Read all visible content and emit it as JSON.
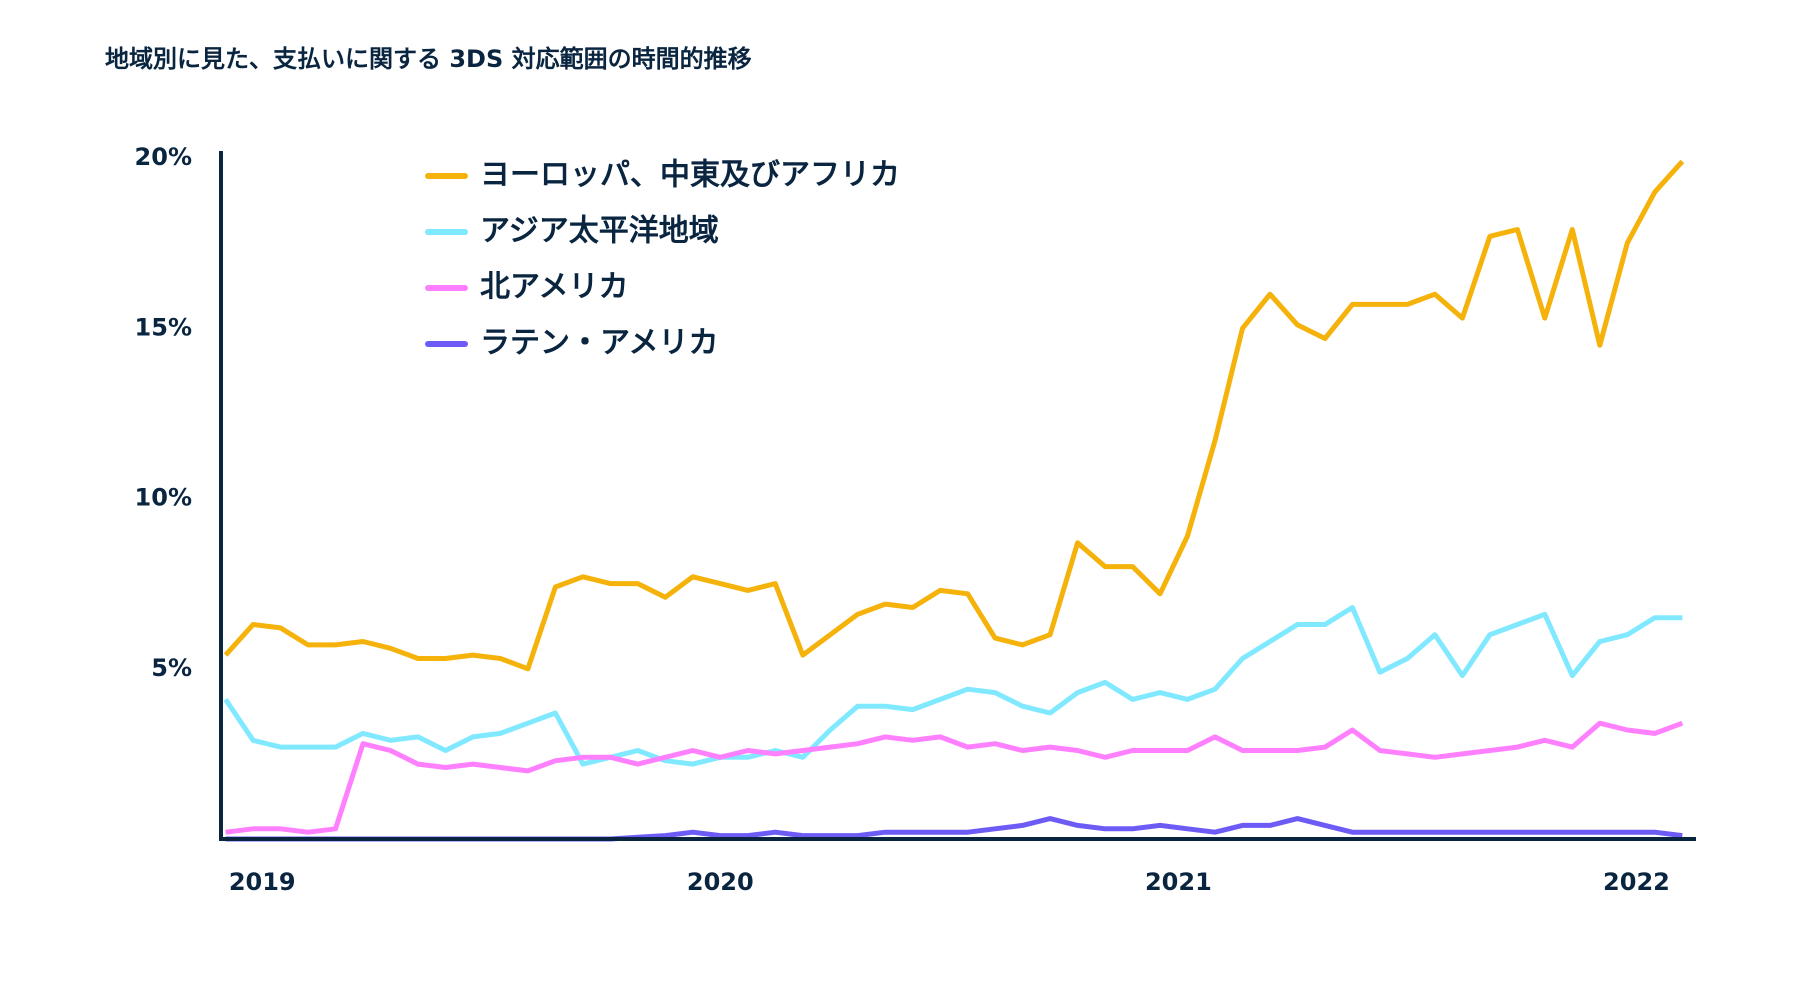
{
  "chart_data": {
    "type": "line",
    "title": "地域別に見た、支払いに関する 3DS 対応範囲の時間的推移",
    "x": [
      2018.92,
      2018.98,
      2019.04,
      2019.1,
      2019.16,
      2019.22,
      2019.28,
      2019.34,
      2019.4,
      2019.46,
      2019.52,
      2019.58,
      2019.64,
      2019.7,
      2019.76,
      2019.82,
      2019.88,
      2019.94,
      2020,
      2020.06,
      2020.12,
      2020.18,
      2020.24,
      2020.3,
      2020.36,
      2020.42,
      2020.48,
      2020.54,
      2020.6,
      2020.66,
      2020.72,
      2020.78,
      2020.84,
      2020.9,
      2020.96,
      2021.02,
      2021.08,
      2021.14,
      2021.2,
      2021.26,
      2021.32,
      2021.38,
      2021.44,
      2021.5,
      2021.56,
      2021.62,
      2021.68,
      2021.74,
      2021.8,
      2021.86,
      2021.92,
      2021.98,
      2022.04,
      2022.1
    ],
    "series": [
      {
        "name": "ヨーロッパ、中東及びアフリカ",
        "color": "#f5b20a",
        "values": [
          5.4,
          6.3,
          6.2,
          5.7,
          5.7,
          5.8,
          5.6,
          5.3,
          5.3,
          5.4,
          5.3,
          5.0,
          7.4,
          7.7,
          7.5,
          7.5,
          7.1,
          7.7,
          7.5,
          7.3,
          7.5,
          5.4,
          6.0,
          6.6,
          6.9,
          6.8,
          7.3,
          7.2,
          5.9,
          5.7,
          6.0,
          8.7,
          8.0,
          8.0,
          7.2,
          8.9,
          11.7,
          15.0,
          16.0,
          15.1,
          14.7,
          15.7,
          15.7,
          15.7,
          16.0,
          15.3,
          17.7,
          17.9,
          15.3,
          17.9,
          14.5,
          17.5,
          19.0,
          19.9
        ]
      },
      {
        "name": "アジア太平洋地域",
        "color": "#80e9ff",
        "values": [
          4.1,
          2.9,
          2.7,
          2.7,
          2.7,
          3.1,
          2.9,
          3.0,
          2.6,
          3.0,
          3.1,
          3.4,
          3.7,
          2.2,
          2.4,
          2.6,
          2.3,
          2.2,
          2.4,
          2.4,
          2.6,
          2.4,
          3.2,
          3.9,
          3.9,
          3.8,
          4.1,
          4.4,
          4.3,
          3.9,
          3.7,
          4.3,
          4.6,
          4.1,
          4.3,
          4.1,
          4.4,
          5.3,
          5.8,
          6.3,
          6.3,
          6.8,
          4.9,
          5.3,
          6.0,
          4.8,
          6.0,
          6.3,
          6.6,
          4.8,
          5.8,
          6.0,
          6.5,
          6.5
        ]
      },
      {
        "name": "北アメリカ",
        "color": "#ff80ff",
        "values": [
          0.2,
          0.3,
          0.3,
          0.2,
          0.3,
          2.8,
          2.6,
          2.2,
          2.1,
          2.2,
          2.1,
          2.0,
          2.3,
          2.4,
          2.4,
          2.2,
          2.4,
          2.6,
          2.4,
          2.6,
          2.5,
          2.6,
          2.7,
          2.8,
          3.0,
          2.9,
          3.0,
          2.7,
          2.8,
          2.6,
          2.7,
          2.6,
          2.4,
          2.6,
          2.6,
          2.6,
          3.0,
          2.6,
          2.6,
          2.6,
          2.7,
          3.2,
          2.6,
          2.5,
          2.4,
          2.5,
          2.6,
          2.7,
          2.9,
          2.7,
          3.4,
          3.2,
          3.1,
          3.4
        ]
      },
      {
        "name": "ラテン・アメリカ",
        "color": "#6c5cf5",
        "values": [
          0,
          0,
          0,
          0,
          0,
          0,
          0,
          0,
          0,
          0,
          0,
          0,
          0,
          0,
          0,
          0.05,
          0.1,
          0.2,
          0.1,
          0.1,
          0.2,
          0.1,
          0.1,
          0.1,
          0.2,
          0.2,
          0.2,
          0.2,
          0.3,
          0.4,
          0.6,
          0.4,
          0.3,
          0.3,
          0.4,
          0.3,
          0.2,
          0.4,
          0.4,
          0.6,
          0.4,
          0.2,
          0.2,
          0.2,
          0.2,
          0.2,
          0.2,
          0.2,
          0.2,
          0.2,
          0.2,
          0.2,
          0.2,
          0.1
        ]
      }
    ],
    "xlim": [
      2018.91,
      2022.13
    ],
    "xticks": [
      2019,
      2020,
      2021,
      2022
    ],
    "ylim": [
      0,
      20.5
    ],
    "yticks": [
      {
        "value": 5,
        "label": "5%"
      },
      {
        "value": 10,
        "label": "10%"
      },
      {
        "value": 15,
        "label": "15%"
      },
      {
        "value": 20,
        "label": "20%"
      }
    ]
  }
}
